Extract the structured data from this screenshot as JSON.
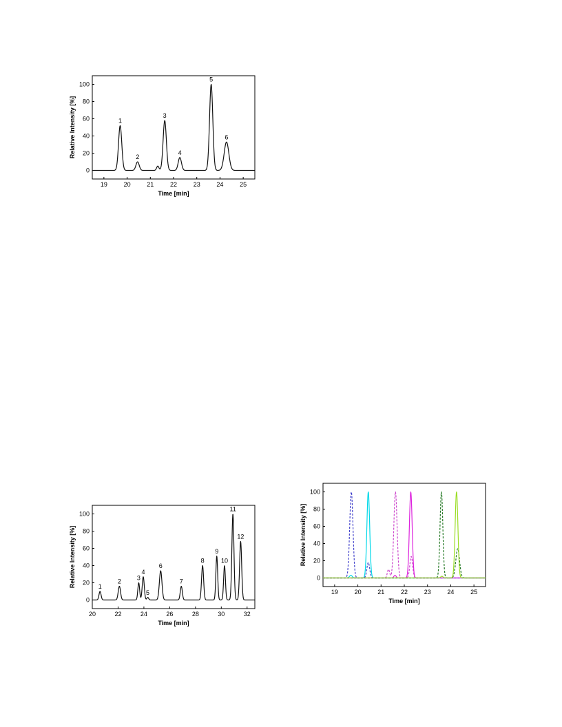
{
  "chart_data": [
    {
      "id": "chart1",
      "type": "line",
      "xlabel": "Time [min]",
      "ylabel": "Relative Intensity [%]",
      "xlim": [
        18.5,
        25.5
      ],
      "ylim": [
        -10,
        110
      ],
      "xticks": [
        19,
        20,
        21,
        22,
        23,
        24,
        25
      ],
      "yticks": [
        0,
        20,
        40,
        60,
        80,
        100
      ],
      "baseline": 0,
      "peaks": [
        {
          "label": "1",
          "x": 19.7,
          "y": 52,
          "w": 0.07
        },
        {
          "label": "2",
          "x": 20.45,
          "y": 10,
          "w": 0.07
        },
        {
          "label": "",
          "x": 21.32,
          "y": 5,
          "w": 0.05
        },
        {
          "label": "3",
          "x": 21.62,
          "y": 58,
          "w": 0.07
        },
        {
          "label": "4",
          "x": 22.27,
          "y": 15,
          "w": 0.07
        },
        {
          "label": "5",
          "x": 23.62,
          "y": 100,
          "w": 0.07
        },
        {
          "label": "6",
          "x": 24.28,
          "y": 33,
          "w": 0.1
        }
      ]
    },
    {
      "id": "chart2",
      "type": "line",
      "xlabel": "Time [min]",
      "ylabel": "Relative Intensity [%]",
      "xlim": [
        20,
        32.6
      ],
      "ylim": [
        -10,
        110
      ],
      "xticks": [
        20,
        22,
        24,
        26,
        28,
        30,
        32
      ],
      "yticks": [
        0,
        20,
        40,
        60,
        80,
        100
      ],
      "baseline": 0,
      "peaks": [
        {
          "label": "1",
          "x": 20.6,
          "y": 10,
          "w": 0.08
        },
        {
          "label": "2",
          "x": 22.1,
          "y": 16,
          "w": 0.09
        },
        {
          "label": "3",
          "x": 23.6,
          "y": 20,
          "w": 0.07
        },
        {
          "label": "4",
          "x": 23.95,
          "y": 27,
          "w": 0.08
        },
        {
          "label": "5",
          "x": 24.3,
          "y": 3,
          "w": 0.07
        },
        {
          "label": "6",
          "x": 25.3,
          "y": 34,
          "w": 0.1
        },
        {
          "label": "7",
          "x": 26.9,
          "y": 16,
          "w": 0.08
        },
        {
          "label": "8",
          "x": 28.55,
          "y": 40,
          "w": 0.08
        },
        {
          "label": "9",
          "x": 29.65,
          "y": 51,
          "w": 0.07
        },
        {
          "label": "10",
          "x": 30.25,
          "y": 40,
          "w": 0.07
        },
        {
          "label": "11",
          "x": 30.9,
          "y": 100,
          "w": 0.08
        },
        {
          "label": "12",
          "x": 31.5,
          "y": 68,
          "w": 0.08
        }
      ]
    },
    {
      "id": "chart3",
      "type": "line",
      "xlabel": "Time [min]",
      "ylabel": "Relative Intensity [%]",
      "xlim": [
        18.5,
        25.5
      ],
      "ylim": [
        -10,
        110
      ],
      "xticks": [
        19,
        20,
        21,
        22,
        23,
        24,
        25
      ],
      "yticks": [
        0,
        20,
        40,
        60,
        80,
        100
      ],
      "baseline": 0,
      "series": [
        {
          "color": "#00d8e8",
          "dash": "",
          "peaks": [
            {
              "x": 20.45,
              "y": 100,
              "w": 0.06
            },
            {
              "x": 19.7,
              "y": 3,
              "w": 0.06
            }
          ]
        },
        {
          "color": "#4444cc",
          "dash": "3,2",
          "peaks": [
            {
              "x": 19.72,
              "y": 100,
              "w": 0.07
            },
            {
              "x": 20.45,
              "y": 18,
              "w": 0.06
            }
          ]
        },
        {
          "color": "#cc44cc",
          "dash": "3,2",
          "peaks": [
            {
              "x": 21.62,
              "y": 100,
              "w": 0.07
            },
            {
              "x": 21.32,
              "y": 10,
              "w": 0.05
            },
            {
              "x": 22.3,
              "y": 25,
              "w": 0.06
            }
          ]
        },
        {
          "color": "#dd22dd",
          "dash": "",
          "peaks": [
            {
              "x": 22.28,
              "y": 100,
              "w": 0.06
            },
            {
              "x": 21.6,
              "y": 3,
              "w": 0.05
            }
          ]
        },
        {
          "color": "#227722",
          "dash": "3,2",
          "peaks": [
            {
              "x": 23.6,
              "y": 100,
              "w": 0.06
            },
            {
              "x": 24.3,
              "y": 34,
              "w": 0.08
            }
          ]
        },
        {
          "color": "#99dd22",
          "dash": "",
          "peaks": [
            {
              "x": 24.25,
              "y": 100,
              "w": 0.06
            },
            {
              "x": 23.62,
              "y": 2,
              "w": 0.05
            }
          ]
        }
      ]
    }
  ]
}
